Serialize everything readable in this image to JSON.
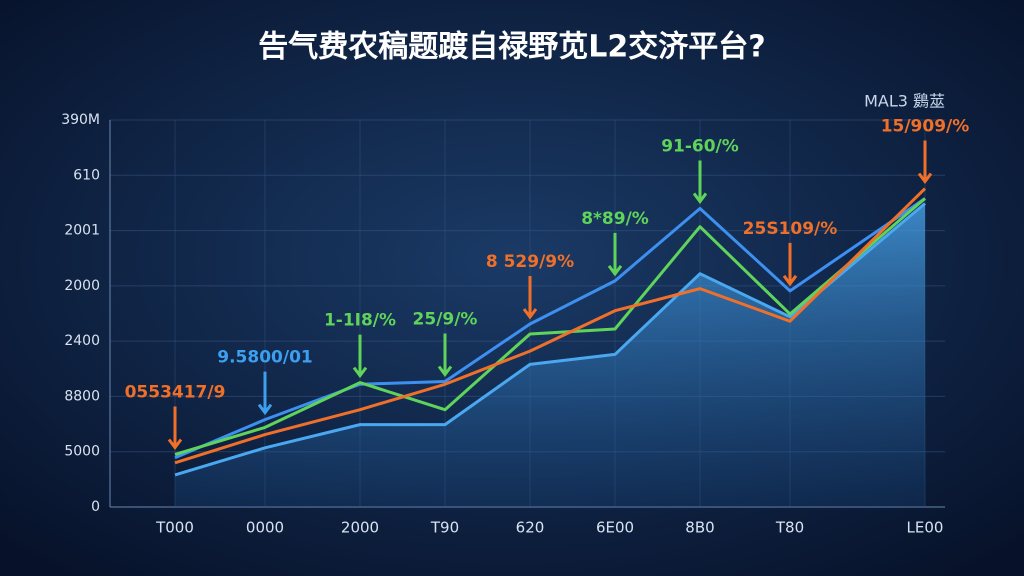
{
  "chart_data": {
    "type": "line",
    "title": "告气费农稿题踱自禄野苋L2交济平台?",
    "subtitle": "MAL3 鶢莁",
    "categories": [
      "T000",
      "0000",
      "2000",
      "T90",
      "620",
      "6E00",
      "8B0",
      "T80",
      "LE00"
    ],
    "series": [
      {
        "color": "#4aa8f0",
        "values": [
          0.58,
          1.07,
          1.49,
          1.49,
          2.58,
          2.76,
          4.22,
          3.44,
          5.49
        ],
        "area": true
      },
      {
        "color": "#3d8ff0",
        "values": [
          0.89,
          1.58,
          2.22,
          2.27,
          3.31,
          4.09,
          5.4,
          3.91,
          5.58
        ]
      },
      {
        "color": "#5fd35a",
        "values": [
          0.95,
          1.44,
          2.25,
          1.76,
          3.13,
          3.22,
          5.07,
          3.49,
          5.58
        ]
      },
      {
        "color": "#f0702a",
        "values": [
          0.8,
          1.31,
          1.76,
          2.22,
          2.82,
          3.55,
          3.95,
          3.36,
          5.76
        ]
      }
    ],
    "annotations": [
      {
        "text": "0553417/9",
        "color": "#f0702a"
      },
      {
        "text": "9.5800/01",
        "color": "#3d9ff0"
      },
      {
        "text": "1-1I8/%",
        "color": "#5fd35a"
      },
      {
        "text": "25/9/%",
        "color": "#5fd35a"
      },
      {
        "text": "8 529/9%",
        "color": "#f0702a"
      },
      {
        "text": "8*89/%",
        "color": "#5fd35a"
      },
      {
        "text": "91-60/%",
        "color": "#5fd35a"
      },
      {
        "text": "25S109/%",
        "color": "#f0702a"
      },
      {
        "text": "15/909/%",
        "color": "#f0702a"
      }
    ],
    "ylim": [
      0,
      7
    ],
    "yticks": [
      0,
      {
        "value": 1,
        "label": "5000"
      },
      {
        "value": 2,
        "label": "8800"
      },
      {
        "value": 3,
        "label": "2400"
      },
      {
        "value": 4,
        "label": "2000"
      },
      {
        "value": 5,
        "label": "2001"
      },
      {
        "value": 6,
        "label": "610"
      },
      {
        "value": 7,
        "label": "390M"
      }
    ],
    "grid": true
  }
}
